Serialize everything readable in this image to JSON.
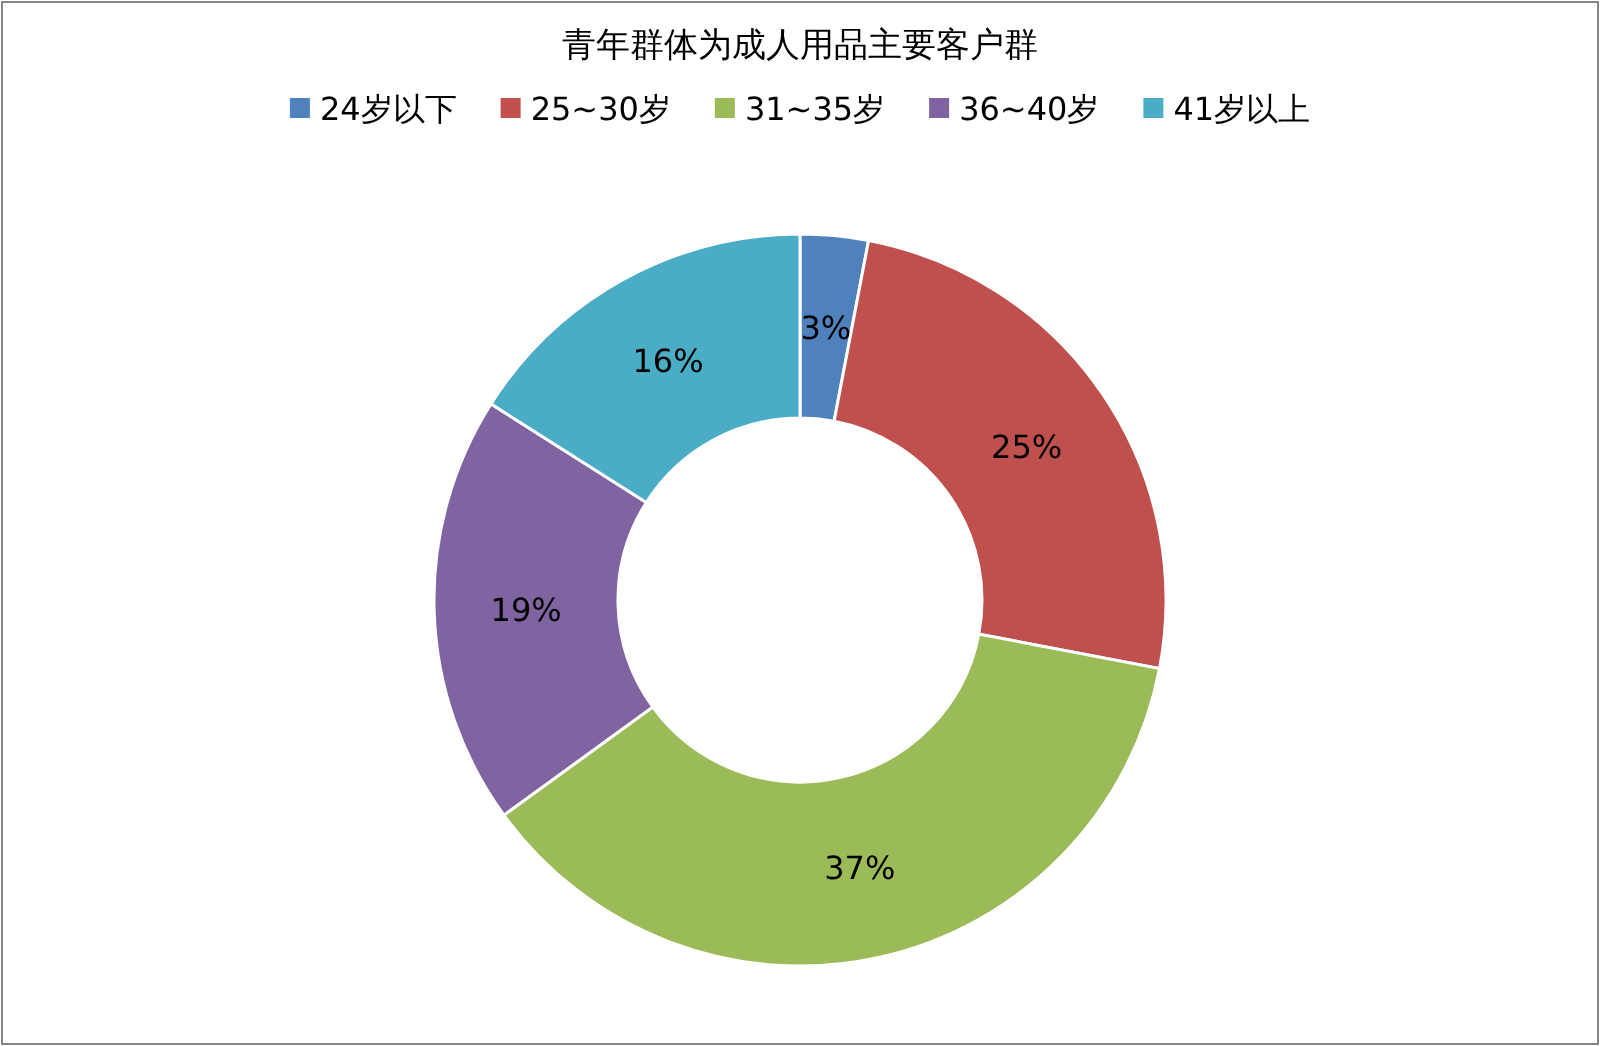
{
  "chart_data": {
    "type": "donut",
    "title": "青年群体为成人用品主要客户群",
    "categories": [
      "24岁以下",
      "25~30岁",
      "31~35岁",
      "36~40岁",
      "41岁以上"
    ],
    "values": [
      3,
      25,
      37,
      19,
      16
    ],
    "colors": [
      "#4f81bd",
      "#c0504d",
      "#9bbb59",
      "#8064a2",
      "#4bacc6"
    ],
    "value_labels": [
      "3%",
      "25%",
      "37%",
      "19%",
      "16%"
    ],
    "legend": "top"
  }
}
